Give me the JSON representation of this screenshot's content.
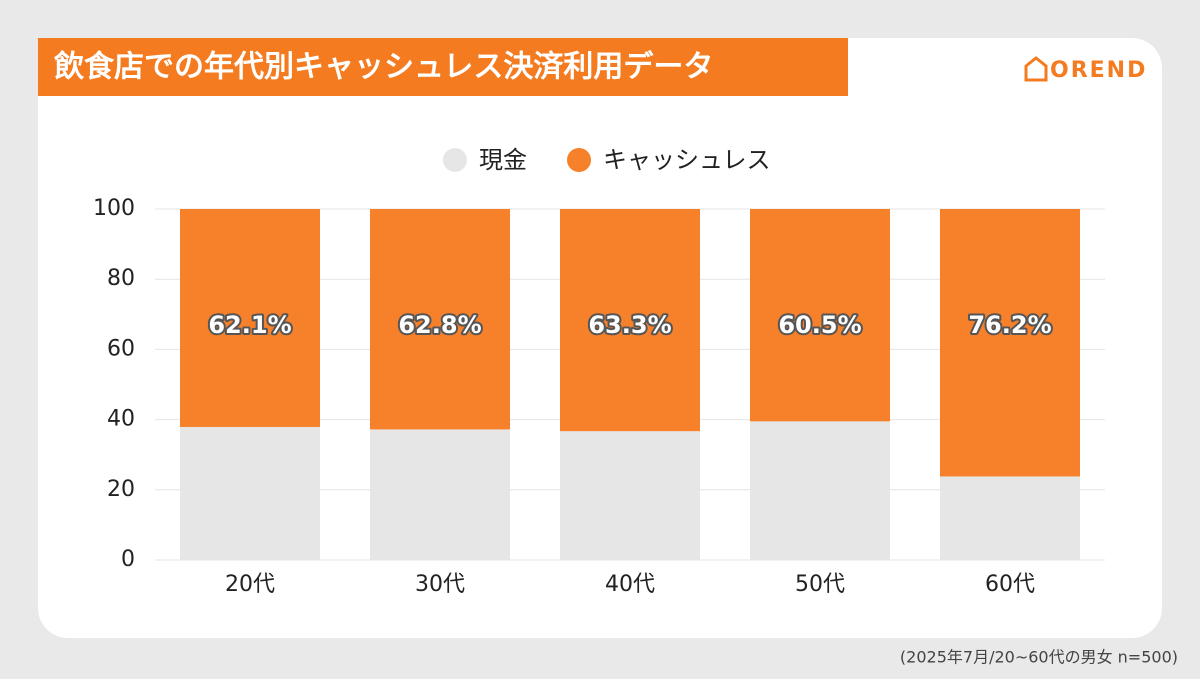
{
  "chart_data": {
    "type": "stacked-bar",
    "title": "飲食店での年代別キャッシュレス決済利用データ",
    "logo": "OREND",
    "footnote": "(2025年7月/20~60代の男女 n=500)",
    "categories": [
      "20代",
      "30代",
      "40代",
      "50代",
      "60代"
    ],
    "series": [
      {
        "name": "現金",
        "color": "#e6e6e6",
        "values": [
          37.9,
          37.2,
          36.7,
          39.5,
          23.8
        ]
      },
      {
        "name": "キャッシュレス",
        "color": "#f7802a",
        "values": [
          62.1,
          62.8,
          63.3,
          60.5,
          76.2
        ],
        "value_labels": [
          "62.1%",
          "62.8%",
          "63.3%",
          "60.5%",
          "76.2%"
        ]
      }
    ],
    "ylim": [
      0,
      100
    ],
    "yticks": [
      0,
      20,
      40,
      60,
      80,
      100
    ],
    "grid": true
  }
}
